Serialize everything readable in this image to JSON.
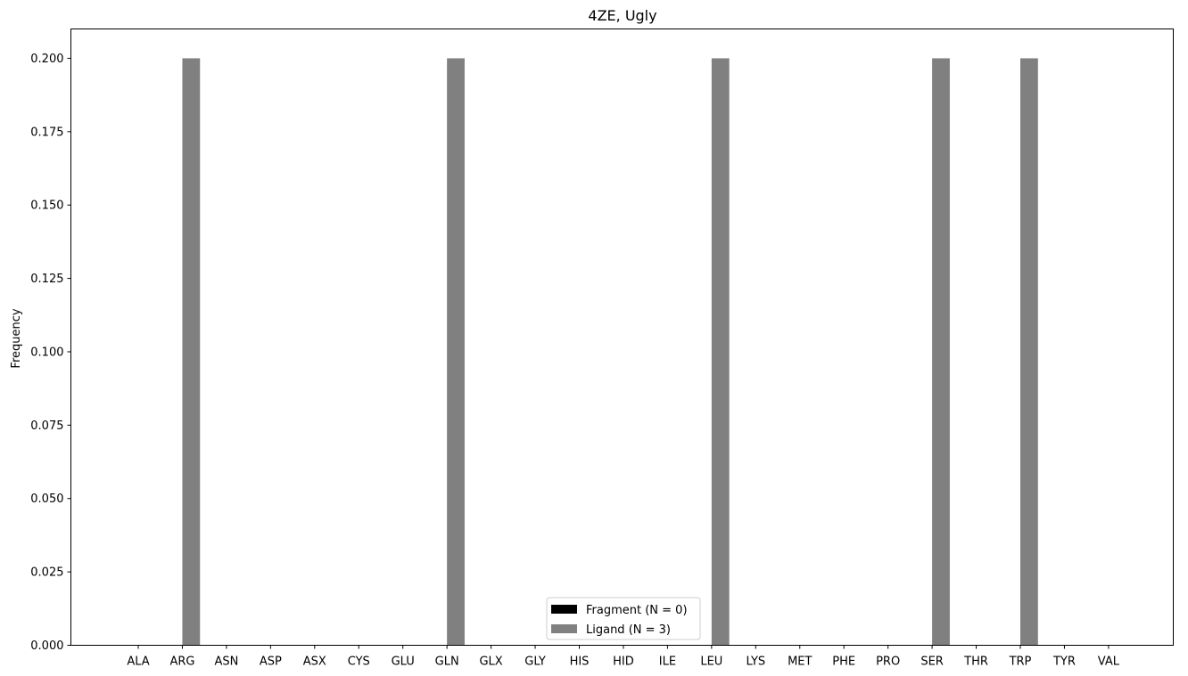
{
  "chart_data": {
    "type": "bar",
    "title": "4ZE, Ugly",
    "xlabel": "",
    "ylabel": "Frequency",
    "ylim": [
      0,
      0.21
    ],
    "yticks": [
      "0.000",
      "0.025",
      "0.050",
      "0.075",
      "0.100",
      "0.125",
      "0.150",
      "0.175",
      "0.200"
    ],
    "categories": [
      "ALA",
      "ARG",
      "ASN",
      "ASP",
      "ASX",
      "CYS",
      "GLU",
      "GLN",
      "GLX",
      "GLY",
      "HIS",
      "HID",
      "ILE",
      "LEU",
      "LYS",
      "MET",
      "PHE",
      "PRO",
      "SER",
      "THR",
      "TRP",
      "TYR",
      "VAL"
    ],
    "series": [
      {
        "name": "Fragment (N = 0)",
        "color": "#000000",
        "values": [
          0,
          0,
          0,
          0,
          0,
          0,
          0,
          0,
          0,
          0,
          0,
          0,
          0,
          0,
          0,
          0,
          0,
          0,
          0,
          0,
          0,
          0,
          0
        ]
      },
      {
        "name": "Ligand (N = 3)",
        "color": "#808080",
        "values": [
          0,
          0.2,
          0,
          0,
          0,
          0,
          0,
          0.2,
          0,
          0,
          0,
          0,
          0,
          0.2,
          0,
          0,
          0,
          0,
          0.2,
          0,
          0.2,
          0,
          0
        ]
      }
    ],
    "grid": false,
    "legend_position": "bottom-center"
  }
}
